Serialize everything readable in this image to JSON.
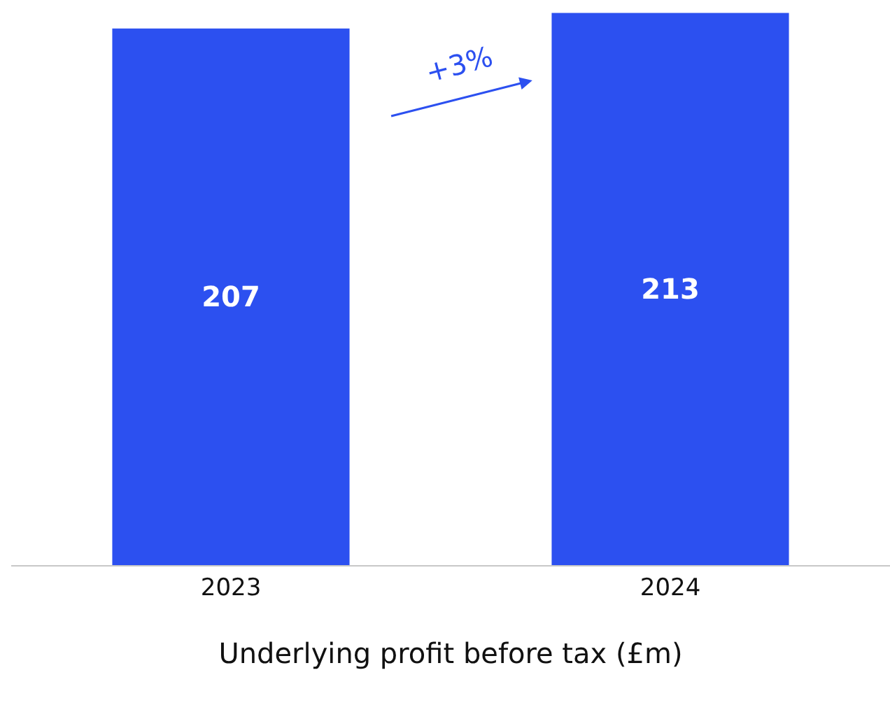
{
  "chart_data": {
    "type": "bar",
    "categories": [
      "2023",
      "2024"
    ],
    "values": [
      207,
      213
    ],
    "color": "#2c50f0",
    "data_labels": true,
    "ylim": [
      0,
      218
    ],
    "tick_labels": "x",
    "legend": false,
    "xlabel": "Underlying profit before tax (£m)",
    "annotations": [
      "+3%"
    ]
  }
}
